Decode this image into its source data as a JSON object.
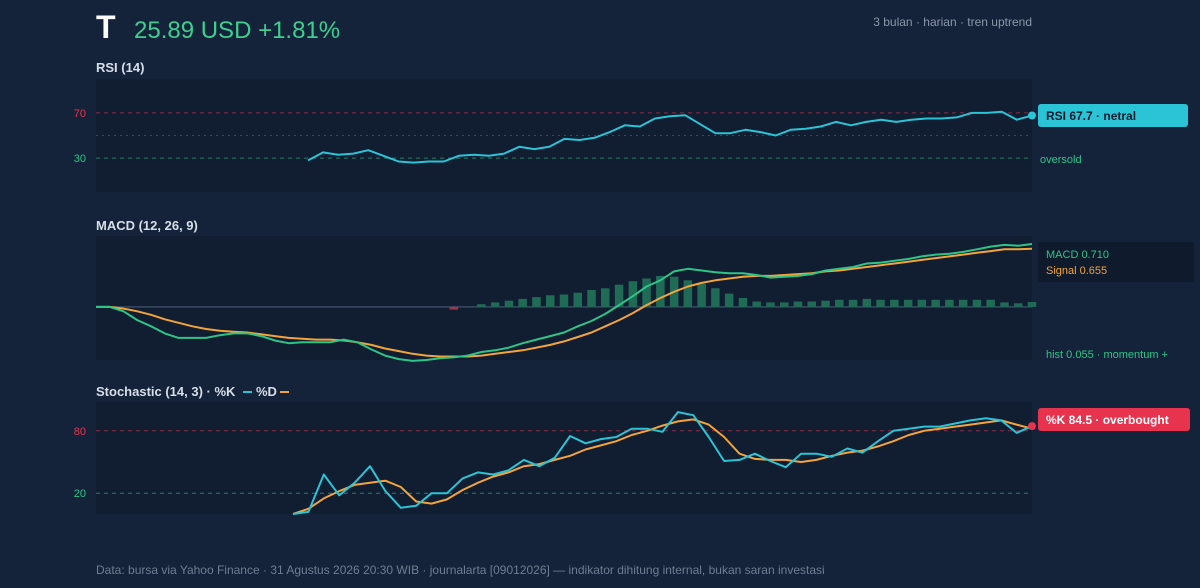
{
  "header": {
    "ticker": "T",
    "price_line": "25.89 USD +1.81%",
    "meta": "3 bulan · harian · tren uptrend"
  },
  "footer": "Data: bursa via Yahoo Finance · 31 Agustus 2026 20:30 WIB · journalarta [09012026] — indikator dihitung internal, bukan saran investasi",
  "colors": {
    "background": "#15233a",
    "panel": "#111d31",
    "rsi": "#2bc4d6",
    "macd": "#2ec486",
    "signal": "#f2a43a",
    "hist_pos": "#1f6b55",
    "hist_neg": "#a83246",
    "overbought": "#e8334e",
    "oversold": "#2ec486",
    "up": "#3ecf8e"
  },
  "chart_data": [
    {
      "type": "line",
      "title": "RSI (14)",
      "ylim": [
        0,
        100
      ],
      "ticks": [
        70,
        30
      ],
      "levels": {
        "overbought": 70,
        "mid": 50,
        "oversold": 30
      },
      "level_labels": {
        "oversold": "oversold"
      },
      "badge": "RSI 67.7 · netral",
      "series": [
        {
          "values": [
            28,
            35,
            33,
            34,
            37,
            32,
            27,
            26,
            27,
            27,
            32,
            33,
            32,
            34,
            40,
            38,
            40,
            47,
            46,
            48,
            53,
            59,
            58,
            65,
            67,
            68,
            60,
            52,
            52,
            55,
            53,
            50,
            55,
            56,
            58,
            62,
            59,
            62,
            64,
            62,
            64,
            65,
            65,
            66,
            70,
            70,
            71,
            64,
            67.7
          ]
        }
      ]
    },
    {
      "type": "line",
      "title": "MACD (12, 26, 9)",
      "ylim": [
        -0.6,
        0.8
      ],
      "legend": {
        "macd": "MACD 0.710",
        "signal": "Signal 0.655"
      },
      "hist_label": "hist 0.055 · momentum +",
      "macd": [
        0,
        0,
        -0.05,
        -0.15,
        -0.22,
        -0.3,
        -0.35,
        -0.35,
        -0.35,
        -0.32,
        -0.3,
        -0.3,
        -0.33,
        -0.38,
        -0.41,
        -0.4,
        -0.4,
        -0.4,
        -0.37,
        -0.4,
        -0.48,
        -0.55,
        -0.59,
        -0.61,
        -0.6,
        -0.58,
        -0.57,
        -0.55,
        -0.51,
        -0.49,
        -0.46,
        -0.41,
        -0.37,
        -0.33,
        -0.29,
        -0.22,
        -0.16,
        -0.08,
        0.02,
        0.12,
        0.23,
        0.3,
        0.4,
        0.43,
        0.41,
        0.39,
        0.38,
        0.38,
        0.36,
        0.33,
        0.34,
        0.35,
        0.37,
        0.41,
        0.43,
        0.45,
        0.49,
        0.5,
        0.52,
        0.54,
        0.57,
        0.59,
        0.6,
        0.62,
        0.65,
        0.68,
        0.7,
        0.69,
        0.71
      ],
      "signal": [
        0,
        0,
        -0.02,
        -0.05,
        -0.09,
        -0.14,
        -0.18,
        -0.22,
        -0.25,
        -0.27,
        -0.28,
        -0.29,
        -0.31,
        -0.33,
        -0.35,
        -0.36,
        -0.37,
        -0.37,
        -0.38,
        -0.4,
        -0.43,
        -0.47,
        -0.5,
        -0.53,
        -0.55,
        -0.56,
        -0.56,
        -0.56,
        -0.55,
        -0.53,
        -0.51,
        -0.49,
        -0.46,
        -0.43,
        -0.39,
        -0.34,
        -0.29,
        -0.22,
        -0.15,
        -0.07,
        0.02,
        0.1,
        0.17,
        0.23,
        0.27,
        0.3,
        0.32,
        0.34,
        0.35,
        0.35,
        0.36,
        0.37,
        0.38,
        0.4,
        0.41,
        0.43,
        0.45,
        0.47,
        0.49,
        0.51,
        0.53,
        0.55,
        0.57,
        0.59,
        0.61,
        0.63,
        0.65,
        0.65,
        0.655
      ],
      "hist": [
        0,
        0,
        0,
        0,
        0,
        0,
        0,
        0,
        0,
        0,
        0,
        0,
        0,
        0,
        0,
        0,
        0,
        0,
        0,
        0,
        0,
        0,
        0,
        0,
        0,
        0,
        -0.03,
        0,
        0.03,
        0.05,
        0.07,
        0.09,
        0.11,
        0.13,
        0.14,
        0.16,
        0.19,
        0.21,
        0.25,
        0.29,
        0.32,
        0.35,
        0.34,
        0.3,
        0.26,
        0.21,
        0.15,
        0.1,
        0.06,
        0.05,
        0.05,
        0.06,
        0.06,
        0.07,
        0.08,
        0.08,
        0.09,
        0.08,
        0.08,
        0.08,
        0.08,
        0.08,
        0.08,
        0.08,
        0.08,
        0.08,
        0.05,
        0.04,
        0.055
      ]
    },
    {
      "type": "line",
      "title": "Stochastic (14, 3) · %K",
      "title_d": "%D",
      "ylim": [
        0,
        100
      ],
      "ticks": [
        80,
        20
      ],
      "levels": {
        "overbought": 80,
        "oversold": 20
      },
      "badge": "%K 84.5 · overbought",
      "k": [
        0,
        2,
        38,
        18,
        30,
        46,
        22,
        6,
        8,
        20,
        20,
        34,
        40,
        38,
        42,
        52,
        46,
        54,
        75,
        68,
        72,
        74,
        82,
        82,
        79,
        98,
        95,
        74,
        51,
        52,
        58,
        51,
        45,
        58,
        58,
        55,
        63,
        59,
        70,
        80,
        82,
        84,
        84,
        87,
        90,
        92,
        90,
        78,
        84.5
      ],
      "d": [
        0,
        5,
        15,
        22,
        28,
        30,
        32,
        26,
        12,
        10,
        14,
        23,
        30,
        36,
        40,
        46,
        48,
        52,
        56,
        62,
        66,
        70,
        76,
        80,
        85,
        89,
        91,
        86,
        74,
        58,
        53,
        52,
        52,
        50,
        52,
        56,
        59,
        61,
        65,
        70,
        76,
        80,
        82,
        84,
        86,
        88,
        90,
        86,
        82
      ]
    }
  ]
}
